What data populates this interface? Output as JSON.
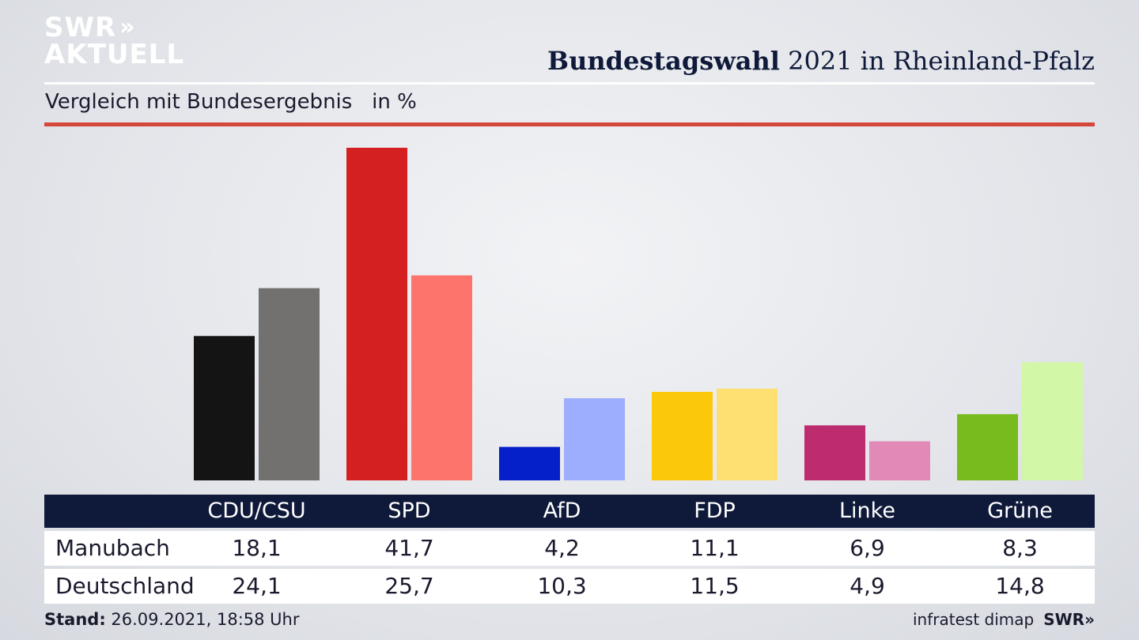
{
  "logo": {
    "line1": "SWR",
    "line2": "AKTUELL",
    "chevrons": "»"
  },
  "header": {
    "title_bold": "Bundestagswahl",
    "title_rest": " 2021 in Rheinland-Pfalz"
  },
  "subtitle": "Vergleich mit Bundesergebnis   in %",
  "chart_data": {
    "type": "bar",
    "title": "Bundestagswahl 2021 in Rheinland-Pfalz",
    "subtitle": "Vergleich mit Bundesergebnis   in %",
    "categories": [
      "CDU/CSU",
      "SPD",
      "AfD",
      "FDP",
      "Linke",
      "Grüne"
    ],
    "series": [
      {
        "name": "Manubach",
        "values": [
          18.1,
          41.7,
          4.2,
          11.1,
          6.9,
          8.3
        ],
        "colors": [
          "#141414",
          "#d42020",
          "#0520c9",
          "#fcc90a",
          "#bd2c6e",
          "#77bb1c"
        ]
      },
      {
        "name": "Deutschland",
        "values": [
          24.1,
          25.7,
          10.3,
          11.5,
          4.9,
          14.8
        ],
        "colors": [
          "#727170",
          "#fd746c",
          "#9daefe",
          "#fee072",
          "#e18ab7",
          "#d2f7a6"
        ]
      }
    ],
    "display_values": {
      "Manubach": [
        "18,1",
        "41,7",
        "4,2",
        "11,1",
        "6,9",
        "8,3"
      ],
      "Deutschland": [
        "24,1",
        "25,7",
        "10,3",
        "11,5",
        "4,9",
        "14,8"
      ]
    },
    "ylim": [
      0,
      41.7
    ],
    "grid": false,
    "legend": "table-below"
  },
  "footer": {
    "stand_label": "Stand:",
    "stand_value": " 26.09.2021, 18:58 Uhr",
    "source": "infratest dimap",
    "brand": "SWR"
  }
}
